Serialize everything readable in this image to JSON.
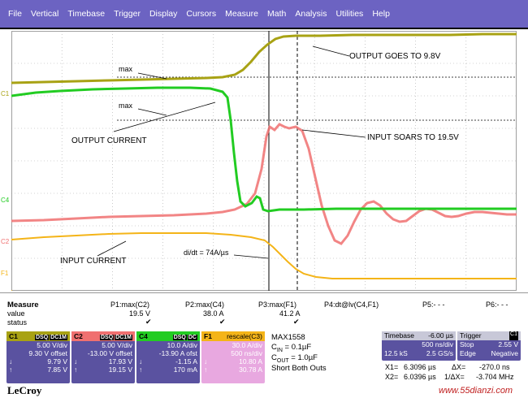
{
  "menu": [
    "File",
    "Vertical",
    "Timebase",
    "Trigger",
    "Display",
    "Cursors",
    "Measure",
    "Math",
    "Analysis",
    "Utilities",
    "Help"
  ],
  "colors": {
    "menubar": "#6c63c2",
    "c1": "#a8a214",
    "c2": "#f07070",
    "c4": "#22cc22",
    "f1": "#f4b418",
    "grid": "#a8a8a8"
  },
  "annotations": {
    "max1": "max",
    "max2": "max",
    "output_goes": "OUTPUT GOES TO 9.8V",
    "output_current": "OUTPUT CURRENT",
    "input_soars": "INPUT SOARS TO 19.5V",
    "input_current": "INPUT CURRENT",
    "didt": "di/dt = 74A/µs"
  },
  "channel_markers": {
    "c1": "C1",
    "c4": "C4",
    "c2": "C2",
    "f1": "F1"
  },
  "measure": {
    "header": "Measure",
    "row_value": "value",
    "row_status": "status",
    "params": [
      {
        "name": "P1:max(C2)",
        "value": "19.5 V",
        "status": "✔"
      },
      {
        "name": "P2:max(C4)",
        "value": "38.0 A",
        "status": "✔"
      },
      {
        "name": "P3:max(F1)",
        "value": "41.2 A",
        "status": "✔"
      },
      {
        "name": "P4:dt@lv(C4,F1)",
        "value": "",
        "status": ""
      },
      {
        "name": "P5:- - -",
        "value": "",
        "status": ""
      },
      {
        "name": "P6:- - -",
        "value": "",
        "status": ""
      }
    ]
  },
  "traces": {
    "c1": {
      "label": "C1",
      "tags": [
        "DSQ",
        "DC1M"
      ],
      "scale": "5.00 V/div",
      "offset": "9.30 V offset",
      "v1": "9.79 V",
      "v2": "7.85 V"
    },
    "c2": {
      "label": "C2",
      "tags": [
        "DSQ",
        "DC1M"
      ],
      "scale": "5.00 V/div",
      "offset": "-13.00 V offset",
      "v1": "17.93 V",
      "v2": "19.15 V"
    },
    "c4": {
      "label": "C4",
      "tags": [
        "DSQ",
        "DC"
      ],
      "scale": "10.0 A/div",
      "offset": "-13.90 A ofst",
      "v1": "-1.15 A",
      "v2": "170 mA"
    },
    "f1": {
      "label": "F1",
      "tags": [
        "rescale(C3)"
      ],
      "scale": "30.0 A/div",
      "offset": "500 ns/div",
      "v1": "10.80 A",
      "v2": "30.78 A"
    }
  },
  "notes": {
    "title": "MAX1558",
    "cin_pre": "C",
    "cin_sub": "IN",
    "cin_val": " = 0.1µF",
    "cout_pre": "C",
    "cout_sub": "OUT",
    "cout_val": " = 1.0µF",
    "short": "Short Both Outs"
  },
  "timebase": {
    "label": "Timebase",
    "value": "-6.00 µs",
    "rate": "500 ns/div",
    "samples": "12.5 kS",
    "srate": "2.5 GS/s"
  },
  "trigger": {
    "label": "Trigger",
    "tag": "C1",
    "mode": "Stop",
    "level": "2.55 V",
    "type": "Edge",
    "slope": "Negative"
  },
  "cursors": {
    "x1_label": "X1=",
    "x1": "6.3096 µs",
    "dx_label": "ΔX=",
    "dx": "-270.0 ns",
    "x2_label": "X2=",
    "x2": "6.0396 µs",
    "inv_label": "1/ΔX=",
    "inv": "-3.704 MHz"
  },
  "brand": "LeCroy",
  "watermark": "www.55dianzi.com"
}
